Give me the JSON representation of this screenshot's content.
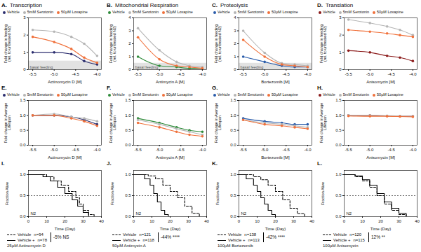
{
  "chart_data": [
    {
      "type": "line",
      "panel": "A.",
      "title": "Transcription",
      "xlabel": "Actinomycin D [M]",
      "ylabel": "Fold change in feeding (rel. to untreated N2)",
      "x": [
        -5.5,
        -5.0,
        -4.6,
        -4.3,
        -4.0
      ],
      "xlim": [
        -5.6,
        -3.9
      ],
      "xticks": [
        -5.5,
        {
          "value": -5,
          "label": "-5.0"
        },
        -4.5,
        {
          "value": -4,
          "label": "-4.0"
        }
      ],
      "ylim": [
        0,
        3
      ],
      "yticks": [
        0,
        1,
        2,
        3
      ],
      "marker": "circle",
      "legend": "top",
      "band": {
        "label": "basal feeding",
        "range": [
          0,
          0.5
        ]
      },
      "series": [
        {
          "name": "Vehicle",
          "color": "#2b2d6e",
          "values": [
            1.0,
            1.0,
            0.9,
            0.5,
            0.3
          ]
        },
        {
          "name": "5mM Serotonin",
          "color": "#b5b5b5",
          "values": [
            2.3,
            2.2,
            1.9,
            1.5,
            0.8
          ]
        },
        {
          "name": "50µM Loxapine",
          "color": "#f0703a",
          "values": [
            1.9,
            1.6,
            1.2,
            0.7,
            0.4
          ]
        }
      ]
    },
    {
      "type": "line",
      "panel": "B.",
      "title": "Mitochondrial Respiration",
      "xlabel": "Antimycin A [M]",
      "ylabel": "Fold change in feeding (rel. to untreated N2)",
      "x": [
        -5.5,
        -5.0,
        -4.6,
        -4.3,
        -4.0
      ],
      "xlim": [
        -5.6,
        -3.9
      ],
      "xticks": [
        -5.5,
        {
          "value": -5,
          "label": "-5.0"
        },
        -4.5,
        {
          "value": -4,
          "label": "-4.0"
        }
      ],
      "ylim": [
        0,
        4
      ],
      "yticks": [
        0,
        1,
        2,
        3,
        4
      ],
      "marker": "circle",
      "legend": "top",
      "band": {
        "label": "basal feeding",
        "range": [
          0,
          0.5
        ]
      },
      "series": [
        {
          "name": "Vehicle",
          "color": "#2e8b3a",
          "values": [
            1.0,
            0.3,
            0.2,
            0.1,
            0.1
          ]
        },
        {
          "name": "5mM Serotonin",
          "color": "#b5b5b5",
          "values": [
            3.2,
            1.5,
            0.6,
            0.3,
            0.2
          ]
        },
        {
          "name": "50µM Loxapine",
          "color": "#f0703a",
          "values": [
            2.5,
            0.8,
            0.3,
            0.2,
            0.1
          ]
        }
      ]
    },
    {
      "type": "line",
      "panel": "C.",
      "title": "Proteolysis",
      "xlabel": "Bortezomib [M]",
      "ylabel": "Fold change in feeding (rel. to untreated N2)",
      "x": [
        -5.5,
        -5.0,
        -4.6,
        -4.3,
        -4.0
      ],
      "xlim": [
        -5.6,
        -3.9
      ],
      "xticks": [
        -5.5,
        {
          "value": -5,
          "label": "-5.0"
        },
        -4.5,
        {
          "value": -4,
          "label": "-4.0"
        }
      ],
      "ylim": [
        0,
        4
      ],
      "yticks": [
        0,
        1,
        2,
        3,
        4
      ],
      "marker": "circle",
      "legend": "top",
      "band": {
        "label": "basal feeding",
        "range": [
          0,
          0.5
        ]
      },
      "series": [
        {
          "name": "Vehicle",
          "color": "#2a5caa",
          "values": [
            1.0,
            0.6,
            0.3,
            0.2,
            0.2
          ]
        },
        {
          "name": "5mM Serotonin",
          "color": "#b5b5b5",
          "values": [
            3.0,
            1.3,
            0.5,
            0.4,
            0.3
          ]
        },
        {
          "name": "50µM Loxapine",
          "color": "#f0703a",
          "values": [
            2.3,
            1.0,
            0.4,
            0.3,
            0.2
          ]
        }
      ]
    },
    {
      "type": "line",
      "panel": "D.",
      "title": "Translation",
      "xlabel": "Anisomycin [M]",
      "ylabel": "Fold change in feeding (rel. to untreated N2)",
      "x": [
        -5.5,
        -5.0,
        -4.6,
        -4.3,
        -4.0
      ],
      "xlim": [
        -5.6,
        -3.9
      ],
      "xticks": [
        -5.5,
        {
          "value": -5,
          "label": "-5.0"
        },
        -4.5,
        {
          "value": -4,
          "label": "-4.0"
        }
      ],
      "ylim": [
        0,
        3
      ],
      "yticks": [
        0,
        1,
        2,
        3
      ],
      "marker": "circle",
      "legend": "top",
      "series": [
        {
          "name": "Vehicle",
          "color": "#8b1a1a",
          "values": [
            1.1,
            1.0,
            0.8,
            0.7,
            0.5
          ]
        },
        {
          "name": "5mM Serotonin",
          "color": "#b5b5b5",
          "values": [
            2.9,
            2.7,
            2.5,
            2.3,
            2.0
          ]
        },
        {
          "name": "50µM Loxapine",
          "color": "#f0703a",
          "values": [
            2.3,
            2.2,
            2.1,
            2.0,
            1.9
          ]
        }
      ]
    },
    {
      "type": "line",
      "panel": "E.",
      "xlabel": "Actinomycin D [M]",
      "ylabel": "Fold change in Average Lifespan",
      "x": [
        -5.5,
        -5.0,
        -4.6,
        -4.3,
        -4.0
      ],
      "xlim": [
        -5.6,
        -3.9
      ],
      "xticks": [
        -5.5,
        {
          "value": -5,
          "label": "-5.0"
        },
        -4.5,
        {
          "value": -4,
          "label": "-4.0"
        }
      ],
      "ylim": [
        0,
        1.5
      ],
      "yticks": [
        {
          "value": 0,
          "label": "0.0"
        },
        0.5,
        {
          "value": 1,
          "label": "1.0"
        },
        1.5
      ],
      "marker": "circle",
      "legend": "top",
      "series": [
        {
          "name": "Vehicle",
          "color": "#2b2d6e",
          "values": [
            1.0,
            1.0,
            0.95,
            0.85,
            0.7
          ]
        },
        {
          "name": "5mM Serotonin",
          "color": "#b5b5b5",
          "values": [
            1.0,
            1.05,
            0.95,
            0.9,
            0.8
          ]
        },
        {
          "name": "50µM Loxapine",
          "color": "#f0703a",
          "values": [
            1.0,
            1.0,
            0.9,
            0.8,
            0.65
          ]
        }
      ]
    },
    {
      "type": "line",
      "panel": "F.",
      "xlabel": "Antimycin A [M]",
      "ylabel": "Fold change in Average Lifespan",
      "x": [
        -5.5,
        -5.0,
        -4.6,
        -4.3,
        -4.0
      ],
      "xlim": [
        -5.6,
        -3.9
      ],
      "xticks": [
        -5.5,
        {
          "value": -5,
          "label": "-5.0"
        },
        -4.5,
        {
          "value": -4,
          "label": "-4.0"
        }
      ],
      "ylim": [
        0,
        1.5
      ],
      "yticks": [
        {
          "value": 0,
          "label": "0.0"
        },
        0.5,
        {
          "value": 1,
          "label": "1.0"
        },
        1.5
      ],
      "marker": "circle",
      "legend": "top",
      "series": [
        {
          "name": "Vehicle",
          "color": "#2e8b3a",
          "values": [
            0.9,
            0.75,
            0.6,
            0.5,
            0.45
          ]
        },
        {
          "name": "5mM Serotonin",
          "color": "#b5b5b5",
          "values": [
            0.85,
            0.7,
            0.55,
            0.45,
            0.35
          ]
        },
        {
          "name": "50µM Loxapine",
          "color": "#f0703a",
          "values": [
            0.75,
            0.6,
            0.45,
            0.35,
            0.3
          ]
        }
      ]
    },
    {
      "type": "line",
      "panel": "G.",
      "xlabel": "Bortezomib [M]",
      "ylabel": "Fold change in Average Lifespan",
      "x": [
        -5.5,
        -5.0,
        -4.6,
        -4.3,
        -4.0
      ],
      "xlim": [
        -5.6,
        -3.9
      ],
      "xticks": [
        -5.5,
        {
          "value": -5,
          "label": "-5.0"
        },
        -4.5,
        {
          "value": -4,
          "label": "-4.0"
        }
      ],
      "ylim": [
        0,
        1.5
      ],
      "yticks": [
        {
          "value": 0,
          "label": "0.0"
        },
        0.5,
        {
          "value": 1,
          "label": "1.0"
        },
        1.5
      ],
      "marker": "circle",
      "legend": "top",
      "series": [
        {
          "name": "Vehicle",
          "color": "#2a5caa",
          "values": [
            0.9,
            0.8,
            0.75,
            0.7,
            0.7
          ]
        },
        {
          "name": "5mM Serotonin",
          "color": "#b5b5b5",
          "values": [
            0.85,
            0.75,
            0.7,
            0.65,
            0.6
          ]
        },
        {
          "name": "50µM Loxapine",
          "color": "#f0703a",
          "values": [
            0.85,
            0.7,
            0.65,
            0.6,
            0.55
          ]
        }
      ]
    },
    {
      "type": "line",
      "panel": "H.",
      "xlabel": "Anisomycin [M]",
      "ylabel": "Fold change in Average Lifespan",
      "x": [
        -5.5,
        -5.0,
        -4.6,
        -4.3,
        -4.0
      ],
      "xlim": [
        -5.6,
        -3.9
      ],
      "xticks": [
        -5.5,
        {
          "value": -5,
          "label": "-5.0"
        },
        -4.5,
        {
          "value": -4,
          "label": "-4.0"
        }
      ],
      "ylim": [
        0,
        1.5
      ],
      "yticks": [
        {
          "value": 0,
          "label": "0.0"
        },
        0.5,
        {
          "value": 1,
          "label": "1.0"
        },
        1.5
      ],
      "marker": "circle",
      "legend": "top",
      "series": [
        {
          "name": "Vehicle",
          "color": "#8b1a1a",
          "values": [
            1.0,
            1.0,
            0.98,
            0.97,
            0.97
          ]
        },
        {
          "name": "5mM Serotonin",
          "color": "#b5b5b5",
          "values": [
            1.0,
            1.0,
            0.99,
            0.98,
            0.97
          ]
        },
        {
          "name": "50µM Loxapine",
          "color": "#f0703a",
          "values": [
            0.98,
            0.97,
            0.97,
            0.96,
            0.95
          ]
        }
      ]
    },
    {
      "type": "step",
      "panel": "I.",
      "xlabel": "Time (Day)",
      "ylabel": "Fraction Alive",
      "strain_label": "N2",
      "xlim": [
        0,
        40
      ],
      "xticks": [
        0,
        10,
        20,
        30,
        40
      ],
      "ylim": [
        0,
        1.1
      ],
      "yticks": [
        {
          "value": 0,
          "label": "0.0"
        },
        0.5,
        {
          "value": 1,
          "label": "1.0"
        }
      ],
      "median_line": 0.5,
      "legend": "bottom",
      "annotation": "-5% NS",
      "treatment": "25µM Actinomycin D",
      "series": [
        {
          "name": "Vehicle",
          "n_label": "n=94",
          "color": "#000000",
          "line_style": "dashed",
          "x": [
            0,
            10,
            14,
            18,
            22,
            26,
            28,
            30,
            33,
            36
          ],
          "values": [
            1,
            0.95,
            0.85,
            0.75,
            0.6,
            0.45,
            0.3,
            0.15,
            0.05,
            0
          ]
        },
        {
          "name": "Vehicle +",
          "n_label": "n=78",
          "color": "#000000",
          "line_style": "solid",
          "x": [
            0,
            8,
            12,
            16,
            20,
            24,
            27,
            30,
            33
          ],
          "values": [
            1,
            0.95,
            0.85,
            0.7,
            0.55,
            0.4,
            0.25,
            0.1,
            0
          ]
        }
      ]
    },
    {
      "type": "step",
      "panel": "J.",
      "xlabel": "Time (Day)",
      "ylabel": "Fraction Alive",
      "strain_label": "N2",
      "xlim": [
        0,
        40
      ],
      "xticks": [
        0,
        10,
        20,
        30,
        40
      ],
      "ylim": [
        0,
        1.1
      ],
      "yticks": [
        {
          "value": 0,
          "label": "0.0"
        },
        0.5,
        {
          "value": 1,
          "label": "1.0"
        }
      ],
      "median_line": 0.5,
      "legend": "bottom",
      "annotation": "-44% ****",
      "treatment": "50µM Antimycin A",
      "series": [
        {
          "name": "Vehicle",
          "n_label": "n=121",
          "color": "#000000",
          "line_style": "dashed",
          "x": [
            0,
            8,
            12,
            16,
            20,
            24,
            28,
            32,
            36
          ],
          "values": [
            1,
            0.97,
            0.9,
            0.75,
            0.6,
            0.45,
            0.25,
            0.08,
            0
          ]
        },
        {
          "name": "Vehicle +",
          "n_label": "n=118",
          "color": "#000000",
          "line_style": "solid",
          "x": [
            0,
            6,
            9,
            11,
            13,
            15,
            17,
            19
          ],
          "values": [
            1,
            0.9,
            0.75,
            0.55,
            0.35,
            0.15,
            0.05,
            0
          ]
        }
      ]
    },
    {
      "type": "step",
      "panel": "K.",
      "xlabel": "Time (Day)",
      "ylabel": "Fraction Alive",
      "strain_label": "N2",
      "xlim": [
        0,
        40
      ],
      "xticks": [
        0,
        10,
        20,
        30,
        40
      ],
      "ylim": [
        0,
        1.1
      ],
      "yticks": [
        {
          "value": 0,
          "label": "0.0"
        },
        0.5,
        {
          "value": 1,
          "label": "1.0"
        }
      ],
      "median_line": 0.5,
      "legend": "bottom",
      "annotation": "-42% ****",
      "treatment": "100µM Bortezomib",
      "series": [
        {
          "name": "Vehicle",
          "n_label": "n=138",
          "color": "#000000",
          "line_style": "dashed",
          "x": [
            0,
            8,
            12,
            16,
            20,
            24,
            28,
            32,
            36
          ],
          "values": [
            1,
            0.95,
            0.88,
            0.75,
            0.6,
            0.4,
            0.2,
            0.07,
            0
          ]
        },
        {
          "name": "Vehicle +",
          "n_label": "n=113",
          "color": "#000000",
          "line_style": "solid",
          "x": [
            0,
            4,
            8,
            10,
            12,
            14,
            16,
            18,
            20
          ],
          "values": [
            1,
            0.9,
            0.75,
            0.6,
            0.45,
            0.3,
            0.15,
            0.05,
            0
          ]
        }
      ]
    },
    {
      "type": "step",
      "panel": "L.",
      "xlabel": "Time (Day)",
      "ylabel": "Fraction Alive",
      "strain_label": "N2",
      "xlim": [
        0,
        40
      ],
      "xticks": [
        0,
        10,
        20,
        30,
        40
      ],
      "ylim": [
        0,
        1.1
      ],
      "yticks": [
        {
          "value": 0,
          "label": "0.0"
        },
        0.5,
        {
          "value": 1,
          "label": "1.0"
        }
      ],
      "median_line": 0.5,
      "legend": "bottom",
      "annotation": "12% **",
      "treatment": "100µM Anisomycin",
      "series": [
        {
          "name": "Vehicle",
          "n_label": "n=120",
          "color": "#000000",
          "line_style": "dashed",
          "x": [
            0,
            6,
            10,
            14,
            18,
            22,
            26,
            30,
            34
          ],
          "values": [
            1,
            0.95,
            0.85,
            0.7,
            0.5,
            0.3,
            0.15,
            0.05,
            0
          ]
        },
        {
          "name": "Vehicle +",
          "n_label": "n=115",
          "color": "#000000",
          "line_style": "solid",
          "x": [
            0,
            6,
            10,
            14,
            18,
            22,
            26,
            30,
            34
          ],
          "values": [
            1,
            0.97,
            0.88,
            0.75,
            0.55,
            0.35,
            0.2,
            0.08,
            0
          ]
        }
      ]
    }
  ]
}
